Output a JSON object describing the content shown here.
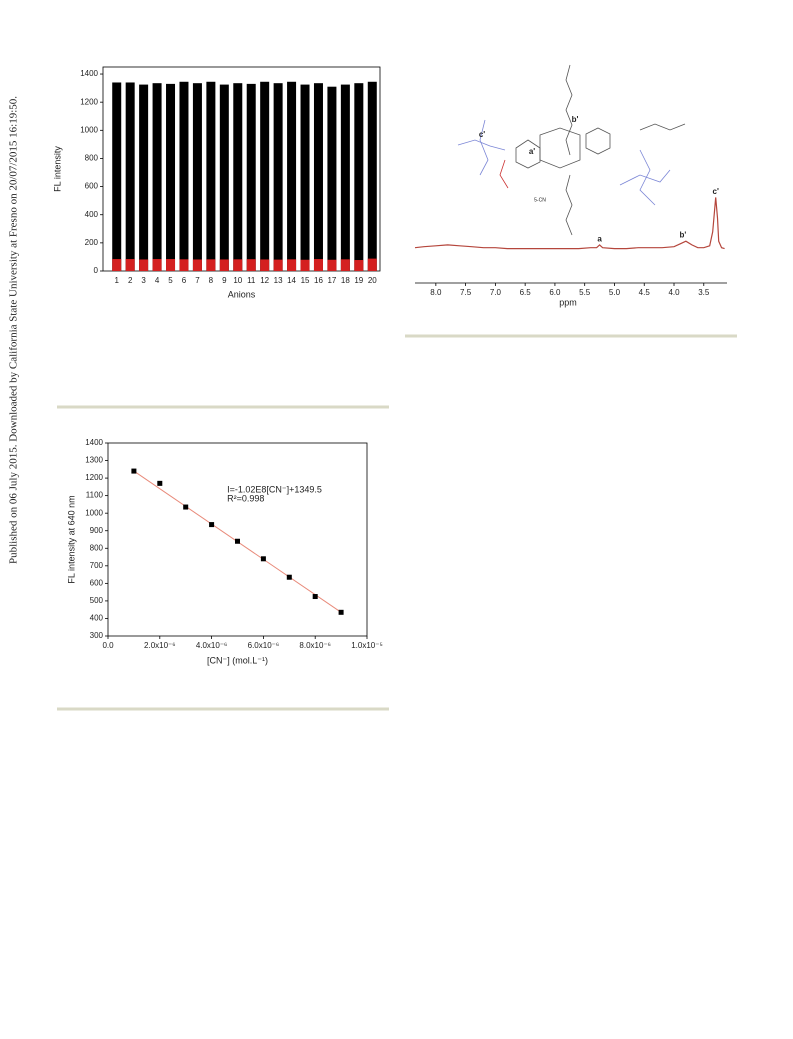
{
  "side_note": "Published on 06 July 2015. Downloaded by California State University at Fresno on 20/07/2015 16:19:50.",
  "chart_data": [
    {
      "type": "bar",
      "xlabel": "Anions",
      "ylabel": "FL intensity",
      "categories": [
        "1",
        "2",
        "3",
        "4",
        "5",
        "6",
        "7",
        "8",
        "9",
        "10",
        "11",
        "12",
        "13",
        "14",
        "15",
        "16",
        "17",
        "18",
        "19",
        "20"
      ],
      "series": [
        {
          "color": "#000000",
          "values": [
            1340,
            1340,
            1325,
            1335,
            1330,
            1345,
            1335,
            1345,
            1325,
            1335,
            1330,
            1345,
            1335,
            1345,
            1325,
            1335,
            1310,
            1325,
            1335,
            1345
          ]
        },
        {
          "color": "#d42020",
          "values": [
            85,
            85,
            82,
            85,
            85,
            83,
            82,
            83,
            82,
            83,
            84,
            82,
            81,
            83,
            80,
            85,
            80,
            83,
            78,
            88
          ]
        }
      ],
      "ylim": [
        0,
        1450
      ],
      "yticks": [
        0,
        200,
        400,
        600,
        800,
        1000,
        1200,
        1400
      ]
    },
    {
      "type": "line",
      "xlabel": "ppm",
      "color": "#b5463c",
      "structure_labels": [
        "a'",
        "b'",
        "c'",
        "5-CN"
      ],
      "x": [
        8.35,
        8.2,
        8.0,
        7.8,
        7.6,
        7.4,
        7.2,
        7.0,
        6.8,
        6.6,
        6.4,
        6.2,
        6.0,
        5.8,
        5.6,
        5.4,
        5.3,
        5.25,
        5.2,
        5.0,
        4.8,
        4.6,
        4.4,
        4.2,
        4.0,
        3.9,
        3.8,
        3.7,
        3.6,
        3.5,
        3.4,
        3.35,
        3.3,
        3.27,
        3.25,
        3.2,
        3.15
      ],
      "values": [
        38,
        39,
        40,
        41,
        40,
        39,
        38,
        38,
        37,
        37,
        37,
        37,
        37,
        37,
        37,
        38,
        38,
        41,
        38,
        37,
        37,
        38,
        38,
        38,
        39,
        42,
        45,
        41,
        38,
        38,
        40,
        55,
        92,
        70,
        45,
        38,
        37
      ],
      "xlim": [
        8.35,
        3.11
      ],
      "ylim": [
        0,
        100
      ],
      "xticks": [
        {
          "value": 8,
          "label": "8.0"
        },
        7.5,
        {
          "value": 7,
          "label": "7.0"
        },
        6.5,
        {
          "value": 6,
          "label": "6.0"
        },
        5.5,
        {
          "value": 5,
          "label": "5.0"
        },
        4.5,
        {
          "value": 4,
          "label": "4.0"
        },
        3.5
      ],
      "annotations": [
        {
          "text": "a",
          "x": 5.25,
          "y": 47
        },
        {
          "text": "b'",
          "x": 3.85,
          "y": 51
        },
        {
          "text": "c'",
          "x": 3.3,
          "y": 98
        }
      ]
    },
    {
      "type": "scatter",
      "xlabel": "[CN⁻] (mol.L⁻¹)",
      "ylabel": "FL intensity at 640 nm",
      "color": "#000000",
      "fit_color": "#e88a7a",
      "x": [
        1e-06,
        2e-06,
        3e-06,
        4e-06,
        5e-06,
        6e-06,
        7e-06,
        8e-06,
        9e-06
      ],
      "values": [
        1240,
        1170,
        1035,
        935,
        840,
        740,
        635,
        525,
        435
      ],
      "xlim": [
        0,
        1e-05
      ],
      "ylim": [
        300,
        1400
      ],
      "xticks": [
        {
          "value": 0,
          "label": "0.0"
        },
        {
          "value": 2e-06,
          "label": "2.0x10⁻⁶"
        },
        {
          "value": 4e-06,
          "label": "4.0x10⁻⁶"
        },
        {
          "value": 6e-06,
          "label": "6.0x10⁻⁶"
        },
        {
          "value": 8e-06,
          "label": "8.0x10⁻⁶"
        },
        {
          "value": 1e-05,
          "label": "1.0x10⁻⁵"
        }
      ],
      "yticks": [
        300,
        400,
        500,
        600,
        700,
        800,
        900,
        1000,
        1100,
        1200,
        1300,
        1400
      ],
      "annotations": [
        {
          "text": "I=-1.02E8[CN⁻]+1349.5",
          "x": 4.6e-06,
          "y": 1130
        },
        {
          "text": "R²=0.998",
          "x": 4.6e-06,
          "y": 1080
        }
      ]
    }
  ]
}
